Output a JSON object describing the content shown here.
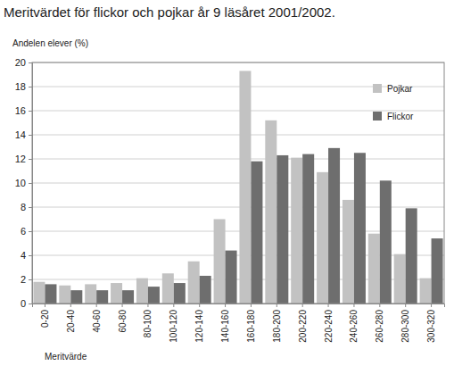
{
  "chart_data": {
    "type": "bar",
    "title": "Meritvärdet för flickor och pojkar år 9 läsåret 2001/2002.",
    "y_label": "Andelen elever (%)",
    "x_label": "Meritvärde",
    "categories": [
      "0-20",
      "20-40",
      "40-60",
      "60-80",
      "80-100",
      "100-120",
      "120-140",
      "140-160",
      "160-180",
      "180-200",
      "200-220",
      "220-240",
      "240-260",
      "260-280",
      "280-300",
      "300-320"
    ],
    "series": [
      {
        "name": "Pojkar",
        "color": "#c2c2c2",
        "values": [
          1.8,
          1.5,
          1.6,
          1.7,
          2.1,
          2.5,
          3.5,
          7.0,
          19.3,
          15.2,
          12.1,
          10.9,
          8.6,
          5.8,
          4.1,
          2.1
        ]
      },
      {
        "name": "Flickor",
        "color": "#6e6e6e",
        "values": [
          1.6,
          1.1,
          1.1,
          1.1,
          1.4,
          1.7,
          2.3,
          4.4,
          11.8,
          12.3,
          12.4,
          12.9,
          12.5,
          10.2,
          7.9,
          5.4
        ]
      }
    ],
    "ylim": [
      0,
      20
    ],
    "yticks": [
      0,
      2,
      4,
      6,
      8,
      10,
      12,
      14,
      16,
      18,
      20
    ],
    "grid": true,
    "legend": "top-right"
  }
}
